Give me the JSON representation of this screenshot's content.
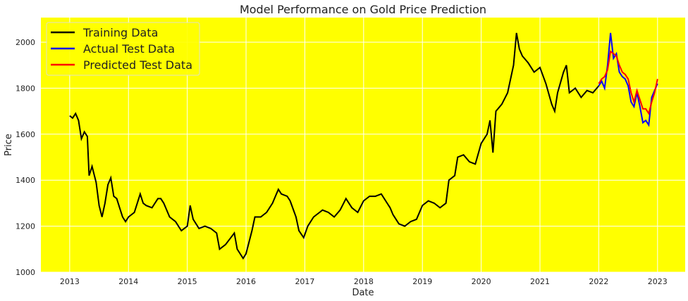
{
  "chart_data": {
    "type": "line",
    "title": "Model Performance on Gold Price Prediction",
    "xlabel": "Date",
    "ylabel": "Price",
    "xlim": [
      2012.51,
      2023.47
    ],
    "ylim": [
      1000,
      2107
    ],
    "xticks": [
      "2013",
      "2014",
      "2015",
      "2016",
      "2017",
      "2018",
      "2019",
      "2020",
      "2021",
      "2022",
      "2023"
    ],
    "yticks": [
      "1000",
      "1200",
      "1400",
      "1600",
      "1800",
      "2000"
    ],
    "grid": true,
    "legend_position": "top-left",
    "background": "#ffff00",
    "series": [
      {
        "name": "Training Data",
        "color": "#000000",
        "x": [
          2013.0,
          2013.05,
          2013.1,
          2013.15,
          2013.2,
          2013.25,
          2013.3,
          2013.33,
          2013.38,
          2013.45,
          2013.5,
          2013.55,
          2013.6,
          2013.65,
          2013.7,
          2013.75,
          2013.8,
          2013.85,
          2013.9,
          2013.95,
          2014.0,
          2014.1,
          2014.2,
          2014.25,
          2014.3,
          2014.4,
          2014.5,
          2014.55,
          2014.6,
          2014.7,
          2014.8,
          2014.9,
          2015.0,
          2015.05,
          2015.1,
          2015.2,
          2015.3,
          2015.4,
          2015.5,
          2015.55,
          2015.65,
          2015.8,
          2015.85,
          2015.95,
          2016.0,
          2016.1,
          2016.15,
          2016.25,
          2016.35,
          2016.45,
          2016.5,
          2016.55,
          2016.6,
          2016.7,
          2016.75,
          2016.85,
          2016.9,
          2016.98,
          2017.05,
          2017.15,
          2017.25,
          2017.3,
          2017.4,
          2017.5,
          2017.6,
          2017.7,
          2017.75,
          2017.8,
          2017.9,
          2018.0,
          2018.1,
          2018.2,
          2018.3,
          2018.4,
          2018.45,
          2018.5,
          2018.6,
          2018.7,
          2018.8,
          2018.9,
          2019.0,
          2019.1,
          2019.2,
          2019.3,
          2019.4,
          2019.45,
          2019.55,
          2019.6,
          2019.7,
          2019.8,
          2019.9,
          2020.0,
          2020.1,
          2020.15,
          2020.2,
          2020.25,
          2020.35,
          2020.45,
          2020.55,
          2020.6,
          2020.65,
          2020.7,
          2020.8,
          2020.9,
          2021.0,
          2021.1,
          2021.2,
          2021.25,
          2021.3,
          2021.4,
          2021.45,
          2021.5,
          2021.6,
          2021.7,
          2021.8,
          2021.9,
          2022.0
        ],
        "y": [
          1680,
          1670,
          1690,
          1660,
          1580,
          1610,
          1590,
          1420,
          1460,
          1390,
          1290,
          1240,
          1300,
          1380,
          1410,
          1330,
          1320,
          1280,
          1240,
          1220,
          1240,
          1260,
          1340,
          1300,
          1290,
          1280,
          1320,
          1320,
          1300,
          1240,
          1220,
          1180,
          1200,
          1290,
          1230,
          1190,
          1200,
          1190,
          1170,
          1100,
          1120,
          1170,
          1100,
          1060,
          1080,
          1180,
          1240,
          1240,
          1260,
          1300,
          1330,
          1360,
          1340,
          1330,
          1310,
          1240,
          1180,
          1150,
          1200,
          1240,
          1260,
          1270,
          1260,
          1240,
          1270,
          1320,
          1300,
          1280,
          1260,
          1310,
          1330,
          1330,
          1340,
          1300,
          1280,
          1250,
          1210,
          1200,
          1220,
          1230,
          1290,
          1310,
          1300,
          1280,
          1300,
          1400,
          1420,
          1500,
          1510,
          1480,
          1470,
          1560,
          1600,
          1660,
          1520,
          1700,
          1730,
          1780,
          1900,
          2040,
          1970,
          1940,
          1910,
          1870,
          1890,
          1820,
          1730,
          1700,
          1780,
          1870,
          1900,
          1780,
          1800,
          1760,
          1790,
          1780,
          1810
        ]
      },
      {
        "name": "Actual Test Data",
        "color": "#0000ff",
        "x": [
          2022.0,
          2022.05,
          2022.1,
          2022.15,
          2022.2,
          2022.25,
          2022.3,
          2022.35,
          2022.4,
          2022.45,
          2022.5,
          2022.55,
          2022.6,
          2022.65,
          2022.7,
          2022.75,
          2022.8,
          2022.85,
          2022.9,
          2022.95,
          2023.0
        ],
        "y": [
          1810,
          1830,
          1800,
          1900,
          2040,
          1930,
          1950,
          1870,
          1850,
          1840,
          1810,
          1740,
          1720,
          1780,
          1720,
          1650,
          1660,
          1640,
          1760,
          1790,
          1820
        ]
      },
      {
        "name": "Predicted Test Data",
        "color": "#ff0000",
        "x": [
          2022.0,
          2022.05,
          2022.1,
          2022.15,
          2022.2,
          2022.25,
          2022.3,
          2022.35,
          2022.4,
          2022.45,
          2022.5,
          2022.55,
          2022.6,
          2022.65,
          2022.7,
          2022.75,
          2022.8,
          2022.85,
          2022.9,
          2022.95,
          2023.0
        ],
        "y": [
          1820,
          1840,
          1850,
          1880,
          1960,
          1950,
          1940,
          1900,
          1870,
          1860,
          1840,
          1780,
          1740,
          1790,
          1750,
          1710,
          1710,
          1690,
          1740,
          1780,
          1840
        ]
      }
    ]
  }
}
